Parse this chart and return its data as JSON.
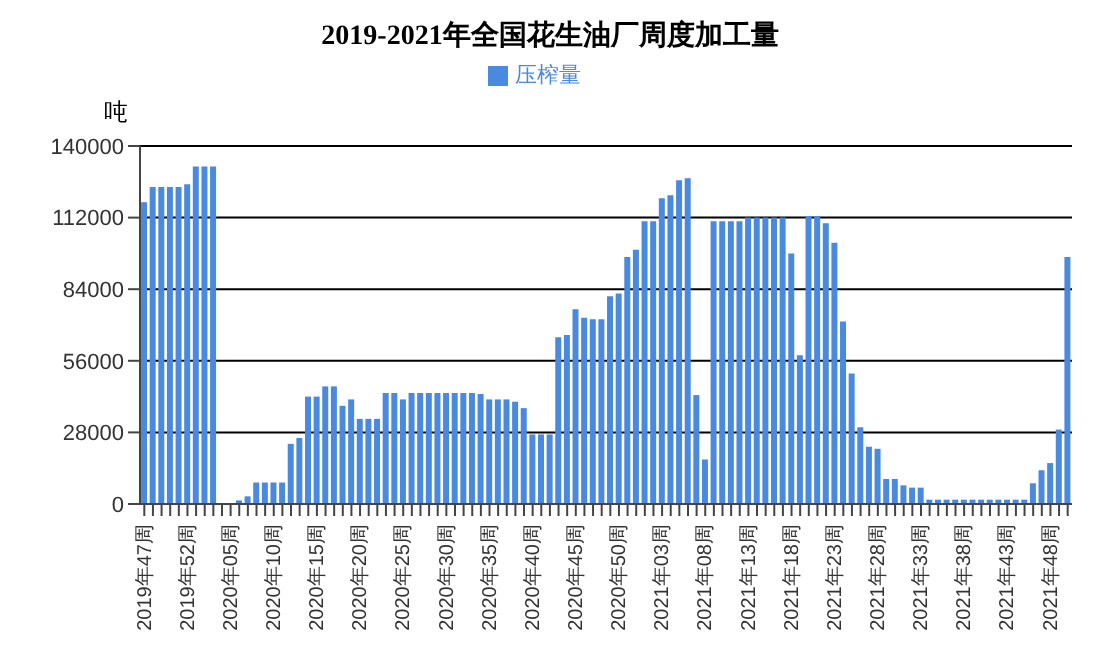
{
  "chart_data": {
    "type": "bar",
    "title": "2019-2021年全国花生油厂周度加工量",
    "ylabel": "吨",
    "categories": [
      "2019年47周",
      null,
      null,
      null,
      null,
      "2019年52周",
      null,
      null,
      null,
      null,
      "2020年05周",
      null,
      null,
      null,
      null,
      "2020年10周",
      null,
      null,
      null,
      null,
      "2020年15周",
      null,
      null,
      null,
      null,
      "2020年20周",
      null,
      null,
      null,
      null,
      "2020年25周",
      null,
      null,
      null,
      null,
      "2020年30周",
      null,
      null,
      null,
      null,
      "2020年35周",
      null,
      null,
      null,
      null,
      "2020年40周",
      null,
      null,
      null,
      null,
      "2020年45周",
      null,
      null,
      null,
      null,
      "2020年50周",
      null,
      null,
      null,
      null,
      "2021年03周",
      null,
      null,
      null,
      null,
      "2021年08周",
      null,
      null,
      null,
      null,
      "2021年13周",
      null,
      null,
      null,
      null,
      "2021年18周",
      null,
      null,
      null,
      null,
      "2021年23周",
      null,
      null,
      null,
      null,
      "2021年28周",
      null,
      null,
      null,
      null,
      "2021年33周",
      null,
      null,
      null,
      null,
      "2021年38周",
      null,
      null,
      null,
      null,
      "2021年43周",
      null,
      null,
      null,
      null,
      "2021年48周",
      null,
      null
    ],
    "series": [
      {
        "name": "压榨量",
        "color": "#4a89e0",
        "values": [
          118000,
          124000,
          124000,
          124000,
          124000,
          125000,
          132000,
          132000,
          132000,
          0,
          0,
          1400,
          3000,
          8400,
          8400,
          8400,
          8400,
          23500,
          25800,
          42000,
          42000,
          46000,
          46000,
          38400,
          40900,
          33300,
          33300,
          33300,
          43400,
          43400,
          40900,
          43400,
          43400,
          43400,
          43400,
          43400,
          43400,
          43400,
          43400,
          43000,
          40900,
          40900,
          40900,
          40000,
          37500,
          27200,
          27200,
          27200,
          65200,
          66100,
          76200,
          72800,
          72200,
          72200,
          81200,
          82300,
          96600,
          99400,
          110600,
          110600,
          119600,
          120700,
          126600,
          127400,
          42600,
          17400,
          110600,
          110600,
          110600,
          110600,
          112000,
          112000,
          112000,
          112000,
          112000,
          98000,
          58200,
          112600,
          112600,
          109800,
          102200,
          71400,
          51000,
          30000,
          22400,
          21600,
          9800,
          9800,
          7300,
          6400,
          6400,
          1700,
          1700,
          1700,
          1700,
          1700,
          1700,
          1700,
          1700,
          1700,
          1700,
          1700,
          1700,
          8100,
          13200,
          16000,
          29100,
          96600
        ]
      }
    ],
    "ylim": [
      0,
      140000
    ],
    "yticks": [
      0,
      28000,
      56000,
      84000,
      112000,
      140000
    ],
    "grid": "y",
    "legend": "top"
  }
}
